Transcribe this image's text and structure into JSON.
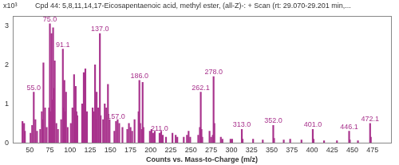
{
  "chart_data": {
    "type": "bar",
    "title": "Cpd 44: 5,8,11,14,17-Eicosapentaenoic acid, methyl ester, (all-Z)-: + Scan (rt: 29.070-29.201 min,...",
    "xlabel": "Counts vs. Mass-to-Charge (m/z)",
    "ylabel": "x10³",
    "color": "#a8328c",
    "x": [
      41,
      43,
      44,
      51,
      53,
      55,
      57,
      59,
      63,
      65,
      66,
      67,
      69,
      71,
      74,
      75,
      76,
      77,
      78,
      79,
      80,
      81,
      83,
      85,
      89,
      91.1,
      92,
      93,
      94,
      95,
      97,
      101,
      103,
      105,
      106,
      107,
      108,
      109,
      115,
      117,
      118,
      119,
      120,
      121,
      128,
      129,
      131,
      132,
      133,
      135,
      137,
      138,
      141,
      143,
      145,
      147,
      149,
      155,
      157,
      159,
      161,
      165,
      171,
      173,
      175,
      177,
      180,
      185,
      186,
      187,
      189,
      190,
      191,
      199,
      201,
      203,
      205,
      211,
      213,
      215,
      219,
      227,
      231,
      233,
      241,
      245,
      247,
      249,
      259,
      261,
      262.1,
      263,
      264,
      273,
      275,
      277,
      278,
      279,
      287,
      289,
      299,
      301,
      313,
      314,
      327,
      339,
      352,
      353,
      365,
      373,
      387,
      401,
      402,
      415,
      431,
      446.1,
      447,
      457,
      472.1,
      473
    ],
    "values": [
      0.55,
      0.5,
      0.3,
      0.25,
      0.45,
      1.3,
      0.6,
      0.3,
      0.35,
      0.8,
      0.6,
      2.05,
      0.9,
      0.4,
      0.9,
      3.05,
      0.8,
      2.8,
      1.1,
      2.95,
      1.4,
      2.1,
      0.5,
      0.35,
      0.6,
      2.4,
      0.9,
      1.6,
      0.8,
      1.3,
      0.4,
      0.5,
      0.9,
      1.75,
      0.8,
      1.45,
      0.8,
      0.7,
      1.0,
      1.8,
      0.9,
      1.9,
      0.6,
      0.8,
      0.9,
      0.8,
      2.0,
      0.6,
      1.3,
      0.9,
      2.8,
      0.7,
      0.6,
      1.0,
      0.9,
      1.5,
      0.6,
      0.3,
      0.55,
      0.6,
      0.5,
      0.4,
      0.35,
      0.5,
      0.4,
      0.3,
      0.6,
      0.8,
      1.6,
      0.5,
      0.35,
      1.55,
      0.4,
      0.3,
      0.35,
      0.25,
      0.3,
      0.25,
      0.3,
      0.2,
      0.15,
      0.25,
      0.2,
      0.15,
      0.15,
      0.2,
      0.3,
      0.15,
      0.2,
      0.4,
      1.3,
      0.35,
      0.15,
      0.3,
      0.15,
      0.2,
      1.7,
      0.5,
      0.15,
      0.1,
      0.1,
      0.1,
      0.35,
      0.1,
      0.1,
      0.08,
      0.45,
      0.12,
      0.08,
      0.1,
      0.08,
      0.35,
      0.1,
      0.06,
      0.06,
      0.3,
      0.08,
      0.06,
      0.5,
      0.15
    ],
    "annotations": [
      {
        "x": 55,
        "label": "55.0"
      },
      {
        "x": 75,
        "label": "75.0"
      },
      {
        "x": 91.1,
        "label": "91.1"
      },
      {
        "x": 137,
        "label": "137.0"
      },
      {
        "x": 157,
        "label": "157.0"
      },
      {
        "x": 186,
        "label": "186.0"
      },
      {
        "x": 211,
        "label": "211.0"
      },
      {
        "x": 262.1,
        "label": "262.1"
      },
      {
        "x": 278,
        "label": "278.0"
      },
      {
        "x": 313,
        "label": "313.0"
      },
      {
        "x": 352,
        "label": "352.0"
      },
      {
        "x": 401,
        "label": "401.0"
      },
      {
        "x": 446.1,
        "label": "446.1"
      },
      {
        "x": 472.1,
        "label": "472.1"
      }
    ],
    "xlim": [
      42,
      485
    ],
    "xticks": [
      50,
      75,
      100,
      125,
      150,
      175,
      200,
      225,
      250,
      275,
      300,
      325,
      350,
      375,
      400,
      425,
      450,
      475
    ],
    "ylim": [
      0,
      3.25
    ],
    "yticks": [
      0,
      1,
      2,
      3
    ],
    "grid": false,
    "legend": "none"
  }
}
